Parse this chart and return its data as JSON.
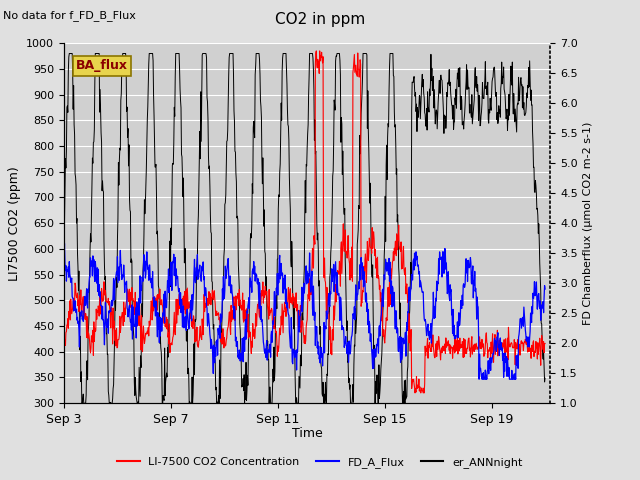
{
  "title": "CO2 in ppm",
  "top_left_text": "No data for f_FD_B_Flux",
  "box_label": "BA_flux",
  "xlabel": "Time",
  "ylabel_left": "LI7500 CO2 (ppm)",
  "ylabel_right": "FD Chamberflux (μmol CO2 m-2 s-1)",
  "ylim_left": [
    300,
    1000
  ],
  "ylim_right": [
    1.0,
    7.0
  ],
  "xtick_labels": [
    "Sep 3",
    "Sep 7",
    "Sep 11",
    "Sep 15",
    "Sep 19"
  ],
  "legend_labels": [
    "LI-7500 CO2 Concentration",
    "FD_A_Flux",
    "er_ANNnight"
  ],
  "bg_color": "#e0e0e0",
  "plot_bg_color": "#d0d0d0",
  "grid_color": "white",
  "seed": 42
}
